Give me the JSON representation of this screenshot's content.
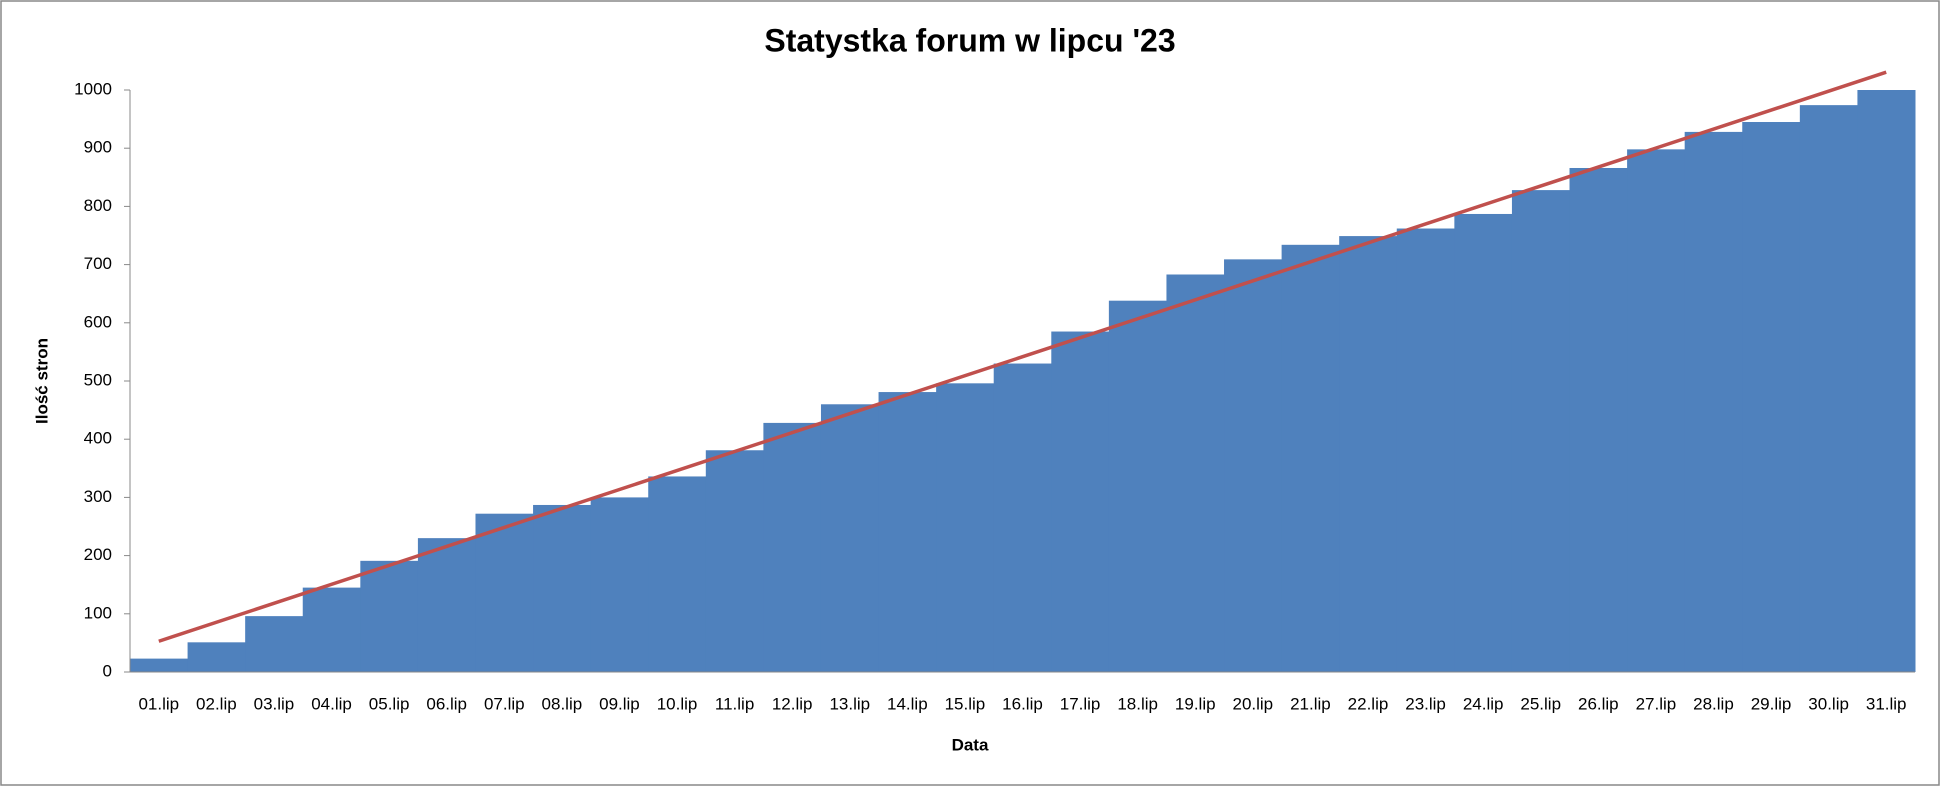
{
  "chart_data": {
    "type": "bar",
    "title": "Statystka forum w lipcu '23",
    "x_label": "Data",
    "y_label": "Ilość stron",
    "categories": [
      "01.lip",
      "02.lip",
      "03.lip",
      "04.lip",
      "05.lip",
      "06.lip",
      "07.lip",
      "08.lip",
      "09.lip",
      "10.lip",
      "11.lip",
      "12.lip",
      "13.lip",
      "14.lip",
      "15.lip",
      "16.lip",
      "17.lip",
      "18.lip",
      "19.lip",
      "20.lip",
      "21.lip",
      "22.lip",
      "23.lip",
      "24.lip",
      "25.lip",
      "26.lip",
      "27.lip",
      "28.lip",
      "29.lip",
      "30.lip",
      "31.lip"
    ],
    "values": [
      23,
      51,
      96,
      145,
      191,
      230,
      272,
      287,
      300,
      336,
      381,
      428,
      460,
      481,
      496,
      530,
      585,
      638,
      683,
      709,
      734,
      749,
      762,
      787,
      828,
      866,
      898,
      928,
      945,
      974,
      1000
    ],
    "color": "#4f81bd",
    "trendline": {
      "type": "linear",
      "color": "#c0504d"
    },
    "ylim": [
      0,
      1000
    ],
    "yticks": [
      0,
      100,
      200,
      300,
      400,
      500,
      600,
      700,
      800,
      900,
      1000
    ],
    "grid": false
  }
}
